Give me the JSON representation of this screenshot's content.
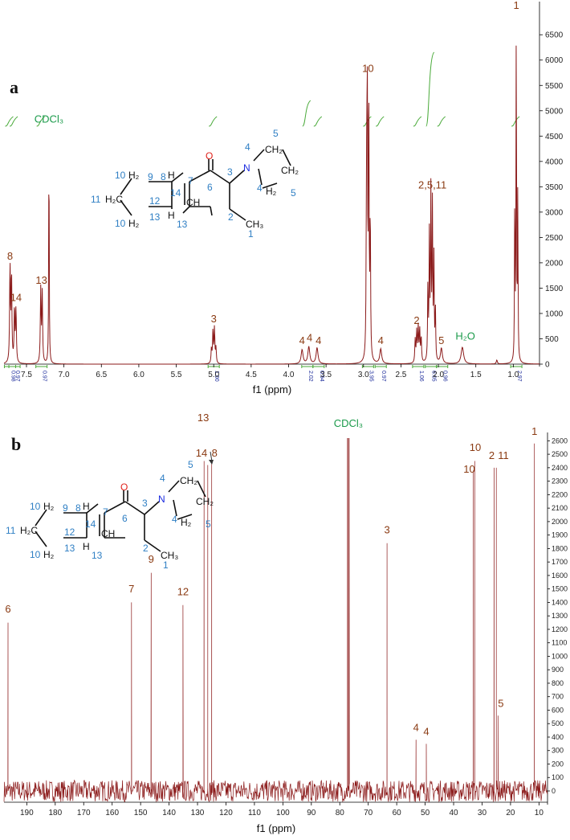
{
  "colors": {
    "spectrum": "#8b1a1a",
    "peak_label": "#8a3a12",
    "solvent_label": "#1a9a4a",
    "integral_curve": "#4aaa3a",
    "integral_text": "#1a2a9a",
    "atom_number": "#2f7fc4",
    "oxygen": "#e0201a",
    "nitrogen": "#1a2ae0"
  },
  "molecule": {
    "atoms": {
      "H2": "H₂",
      "H": "H",
      "O": "O",
      "N": "N",
      "CH2": "CH₂",
      "CH3": "CH₃",
      "H2C": "H₂C",
      "CH": "CH"
    },
    "numbers": [
      "1",
      "2",
      "3",
      "4",
      "5",
      "6",
      "7",
      "8",
      "9",
      "10",
      "11",
      "12",
      "13",
      "14"
    ]
  },
  "chart_data": [
    {
      "panel": "a",
      "type": "line",
      "xlabel": "f1 (ppm)",
      "xlim": [
        7.8,
        0.65
      ],
      "x_ticks": [
        "7.5",
        "7.0",
        "6.5",
        "6.0",
        "5.5",
        "5.0",
        "4.5",
        "4.0",
        "3.5",
        "3.0",
        "2.5",
        "2.0",
        "1.5",
        "1.0"
      ],
      "ylim": [
        -100,
        6900
      ],
      "y_ticks": [
        "6500",
        "6000",
        "5500",
        "5000",
        "4500",
        "4000",
        "3500",
        "3000",
        "2500",
        "2000",
        "1500",
        "1000",
        "500",
        "0"
      ],
      "peaks": [
        {
          "x": 7.72,
          "y": 1950,
          "w": 0.006
        },
        {
          "x": 7.7,
          "y": 1800,
          "w": 0.006
        },
        {
          "x": 7.66,
          "y": 1100,
          "w": 0.006
        },
        {
          "x": 7.64,
          "y": 1080,
          "w": 0.006
        },
        {
          "x": 7.31,
          "y": 1450,
          "w": 0.006
        },
        {
          "x": 7.29,
          "y": 1400,
          "w": 0.006
        },
        {
          "x": 7.2,
          "y": 4600,
          "w": 0.004
        },
        {
          "x": 5.01,
          "y": 650,
          "w": 0.006
        },
        {
          "x": 4.99,
          "y": 700,
          "w": 0.006
        },
        {
          "x": 5.03,
          "y": 300,
          "w": 0.006
        },
        {
          "x": 4.97,
          "y": 300,
          "w": 0.006
        },
        {
          "x": 3.82,
          "y": 280,
          "w": 0.015
        },
        {
          "x": 3.73,
          "y": 340,
          "w": 0.015
        },
        {
          "x": 3.62,
          "y": 320,
          "w": 0.015
        },
        {
          "x": 2.96,
          "y": 3100,
          "w": 0.005
        },
        {
          "x": 2.95,
          "y": 5600,
          "w": 0.005
        },
        {
          "x": 2.93,
          "y": 5500,
          "w": 0.005
        },
        {
          "x": 2.91,
          "y": 2900,
          "w": 0.005
        },
        {
          "x": 2.77,
          "y": 290,
          "w": 0.015
        },
        {
          "x": 2.31,
          "y": 450,
          "w": 0.006
        },
        {
          "x": 2.29,
          "y": 600,
          "w": 0.006
        },
        {
          "x": 2.27,
          "y": 700,
          "w": 0.006
        },
        {
          "x": 2.25,
          "y": 650,
          "w": 0.006
        },
        {
          "x": 2.23,
          "y": 500,
          "w": 0.006
        },
        {
          "x": 2.14,
          "y": 1500,
          "w": 0.005
        },
        {
          "x": 2.12,
          "y": 2500,
          "w": 0.005
        },
        {
          "x": 2.1,
          "y": 3300,
          "w": 0.005
        },
        {
          "x": 2.08,
          "y": 3000,
          "w": 0.005
        },
        {
          "x": 2.06,
          "y": 2000,
          "w": 0.005
        },
        {
          "x": 2.04,
          "y": 1000,
          "w": 0.005
        },
        {
          "x": 1.96,
          "y": 300,
          "w": 0.015
        },
        {
          "x": 1.68,
          "y": 330,
          "w": 0.02
        },
        {
          "x": 1.22,
          "y": 80,
          "w": 0.008
        },
        {
          "x": 0.98,
          "y": 3500,
          "w": 0.004
        },
        {
          "x": 0.96,
          "y": 6900,
          "w": 0.004
        },
        {
          "x": 0.94,
          "y": 3400,
          "w": 0.004
        }
      ],
      "labels": [
        {
          "text": "8",
          "x": 7.72,
          "y": 2000,
          "kind": "peak"
        },
        {
          "text": "14",
          "x": 7.64,
          "y": 1180,
          "kind": "peak"
        },
        {
          "text": "13",
          "x": 7.3,
          "y": 1520,
          "kind": "peak"
        },
        {
          "text": "CDCl₃",
          "x": 7.2,
          "y": 4700,
          "kind": "solvent"
        },
        {
          "text": "3",
          "x": 5.0,
          "y": 760,
          "kind": "peak"
        },
        {
          "text": "4",
          "x": 3.82,
          "y": 330,
          "kind": "peak"
        },
        {
          "text": "4",
          "x": 3.72,
          "y": 390,
          "kind": "peak"
        },
        {
          "text": "4",
          "x": 3.6,
          "y": 330,
          "kind": "peak"
        },
        {
          "text": "10",
          "x": 2.94,
          "y": 5700,
          "kind": "peak"
        },
        {
          "text": "4",
          "x": 2.77,
          "y": 330,
          "kind": "peak"
        },
        {
          "text": "2",
          "x": 2.29,
          "y": 730,
          "kind": "peak"
        },
        {
          "text": "2,5,11",
          "x": 2.08,
          "y": 3400,
          "kind": "peak"
        },
        {
          "text": "5",
          "x": 1.96,
          "y": 330,
          "kind": "peak"
        },
        {
          "text": "H₂O",
          "x": 1.64,
          "y": 420,
          "kind": "solvent"
        },
        {
          "text": "1",
          "x": 0.96,
          "y": 6950,
          "kind": "peak"
        }
      ],
      "integrals": [
        {
          "x": 7.72,
          "value": "0.98"
        },
        {
          "x": 7.66,
          "value": "0.97"
        },
        {
          "x": 7.3,
          "value": "0.97"
        },
        {
          "x": 5.0,
          "value": "1.00"
        },
        {
          "x": 3.75,
          "value": "2.02"
        },
        {
          "x": 3.6,
          "value": "0.94"
        },
        {
          "x": 2.94,
          "value": "3.95"
        },
        {
          "x": 2.77,
          "value": "0.97"
        },
        {
          "x": 2.27,
          "value": "1.06"
        },
        {
          "x": 2.1,
          "value": "6.05"
        },
        {
          "x": 1.95,
          "value": "0.96"
        },
        {
          "x": 0.96,
          "value": "2.97"
        }
      ]
    },
    {
      "panel": "b",
      "type": "line",
      "xlabel": "f1 (ppm)",
      "xlim": [
        198,
        7
      ],
      "x_ticks": [
        "190",
        "180",
        "170",
        "160",
        "150",
        "140",
        "130",
        "120",
        "110",
        "100",
        "90",
        "80",
        "70",
        "60",
        "50",
        "40",
        "30",
        "20",
        "10"
      ],
      "ylim": [
        -80,
        2620
      ],
      "y_ticks": [
        "2600",
        "2500",
        "2400",
        "2300",
        "2200",
        "2100",
        "2000",
        "1900",
        "1800",
        "1700",
        "1600",
        "1500",
        "1400",
        "1300",
        "1200",
        "1100",
        "1000",
        "900",
        "800",
        "700",
        "600",
        "500",
        "400",
        "300",
        "200",
        "100",
        "0"
      ],
      "peaks": [
        {
          "x": 196.6,
          "y": 1250
        },
        {
          "x": 153.2,
          "y": 1400
        },
        {
          "x": 146.3,
          "y": 1620
        },
        {
          "x": 135.1,
          "y": 1380
        },
        {
          "x": 127.7,
          "y": 2450
        },
        {
          "x": 126.4,
          "y": 2420
        },
        {
          "x": 125.0,
          "y": 2430
        },
        {
          "x": 77.3,
          "y": 2620
        },
        {
          "x": 77.0,
          "y": 2620
        },
        {
          "x": 76.7,
          "y": 2620
        },
        {
          "x": 63.4,
          "y": 1840
        },
        {
          "x": 53.2,
          "y": 380
        },
        {
          "x": 49.6,
          "y": 350
        },
        {
          "x": 33.1,
          "y": 2380
        },
        {
          "x": 32.6,
          "y": 2450
        },
        {
          "x": 25.8,
          "y": 2400
        },
        {
          "x": 25.0,
          "y": 2400
        },
        {
          "x": 24.4,
          "y": 560
        },
        {
          "x": 11.6,
          "y": 2580
        }
      ],
      "labels": [
        {
          "text": "6",
          "x": 196.6,
          "y": 1300,
          "kind": "peak"
        },
        {
          "text": "7",
          "x": 153.2,
          "y": 1450,
          "kind": "peak"
        },
        {
          "text": "9",
          "x": 146.3,
          "y": 1670,
          "kind": "peak"
        },
        {
          "text": "12",
          "x": 135.1,
          "y": 1430,
          "kind": "peak"
        },
        {
          "text": "14",
          "x": 128.6,
          "y": 2460,
          "kind": "peak"
        },
        {
          "text": "13",
          "x": 128.0,
          "y": 2720,
          "kind": "peak"
        },
        {
          "text": "8",
          "x": 124.0,
          "y": 2460,
          "kind": "peak"
        },
        {
          "text": "CDCl₃",
          "x": 77.0,
          "y": 2680,
          "kind": "solvent"
        },
        {
          "text": "3",
          "x": 63.4,
          "y": 1890,
          "kind": "peak"
        },
        {
          "text": "4",
          "x": 53.2,
          "y": 420,
          "kind": "peak"
        },
        {
          "text": "4",
          "x": 49.6,
          "y": 390,
          "kind": "peak"
        },
        {
          "text": "10",
          "x": 34.5,
          "y": 2340,
          "kind": "peak"
        },
        {
          "text": "10",
          "x": 32.4,
          "y": 2500,
          "kind": "peak"
        },
        {
          "text": "2",
          "x": 26.6,
          "y": 2440,
          "kind": "peak"
        },
        {
          "text": "11",
          "x": 22.5,
          "y": 2440,
          "kind": "peak"
        },
        {
          "text": "5",
          "x": 23.4,
          "y": 600,
          "kind": "peak"
        },
        {
          "text": "1",
          "x": 11.6,
          "y": 2620,
          "kind": "peak"
        }
      ]
    }
  ]
}
